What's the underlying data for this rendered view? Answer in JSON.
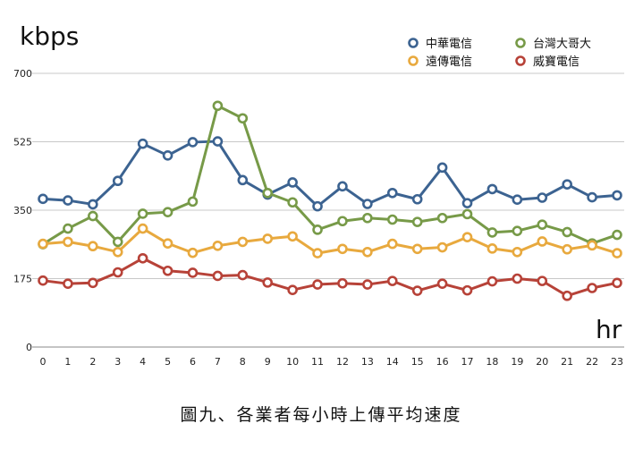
{
  "chart_data": {
    "type": "line",
    "title": "",
    "caption": "圖九、各業者每小時上傳平均速度",
    "ylabel": "kbps",
    "xlabel": "hr",
    "ylim": [
      0,
      700
    ],
    "yticks": [
      0,
      175,
      350,
      525,
      700
    ],
    "grid": "horizontal",
    "legend_position": "top-right",
    "categories": [
      "0",
      "1",
      "2",
      "3",
      "4",
      "5",
      "6",
      "7",
      "8",
      "9",
      "10",
      "11",
      "12",
      "13",
      "14",
      "15",
      "16",
      "17",
      "18",
      "19",
      "20",
      "21",
      "22",
      "23"
    ],
    "series": [
      {
        "name": "中華電信",
        "color": "#3c6391",
        "values": [
          379,
          375,
          365,
          425,
          520,
          490,
          524,
          526,
          427,
          390,
          421,
          360,
          411,
          366,
          394,
          378,
          459,
          368,
          404,
          377,
          382,
          416,
          383,
          388
        ]
      },
      {
        "name": "台灣大哥大",
        "color": "#779a48",
        "values": [
          263,
          303,
          335,
          269,
          341,
          345,
          372,
          617,
          585,
          394,
          370,
          300,
          322,
          330,
          326,
          320,
          330,
          340,
          293,
          297,
          313,
          294,
          265,
          287
        ]
      },
      {
        "name": "遠傳電信",
        "color": "#e8a93e",
        "values": [
          264,
          269,
          258,
          243,
          303,
          265,
          241,
          259,
          269,
          277,
          283,
          240,
          251,
          243,
          264,
          251,
          255,
          281,
          252,
          243,
          270,
          250,
          260,
          240
        ]
      },
      {
        "name": "威寶電信",
        "color": "#b74238",
        "values": [
          170,
          162,
          164,
          191,
          227,
          195,
          190,
          182,
          184,
          165,
          146,
          160,
          163,
          160,
          169,
          144,
          162,
          145,
          168,
          175,
          169,
          131,
          151,
          164
        ]
      }
    ]
  }
}
